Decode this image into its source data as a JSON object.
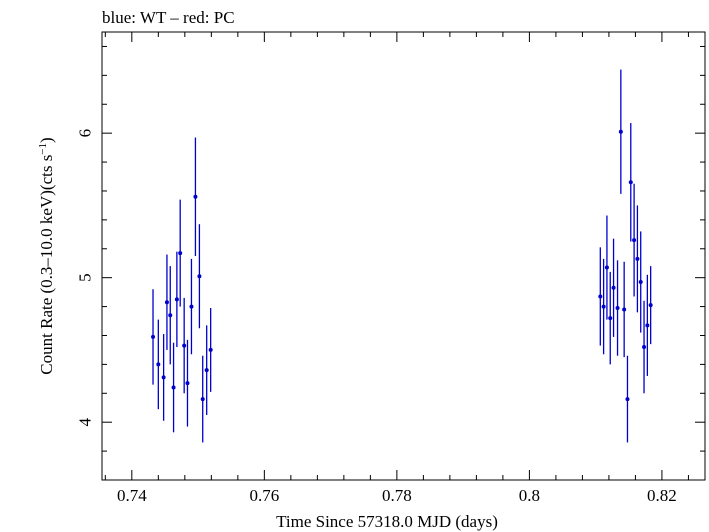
{
  "chart_data": {
    "type": "scatter",
    "title": "blue: WT – red: PC",
    "xlabel": "Time Since 57318.0 MJD (days)",
    "ylabel_main": "Count Rate (0.3–10.0 keV)(cts s",
    "ylabel_sup": "−1",
    "ylabel_close": ")",
    "xlim": [
      0.7355,
      0.8265
    ],
    "ylim": [
      3.6,
      6.7
    ],
    "xticks": [
      0.74,
      0.76,
      0.78,
      0.8,
      0.82
    ],
    "xtick_labels": [
      "0.74",
      "0.76",
      "0.78",
      "0.8",
      "0.82"
    ],
    "yticks": [
      4,
      5,
      6
    ],
    "ytick_labels": [
      "4",
      "5",
      "6"
    ],
    "series": [
      {
        "name": "WT",
        "color": "#0000cc",
        "x": [
          0.7432,
          0.744,
          0.7448,
          0.7453,
          0.7458,
          0.7463,
          0.7468,
          0.7473,
          0.7479,
          0.7484,
          0.749,
          0.7496,
          0.7502,
          0.7507,
          0.7513,
          0.7519,
          0.7524,
          0.8107,
          0.8112,
          0.8117,
          0.8122,
          0.8127,
          0.8133,
          0.8138,
          0.8143,
          0.8148,
          0.8153,
          0.8158,
          0.8163,
          0.8168,
          0.8173,
          0.8178,
          0.8183,
          0.8188
        ],
        "y": [
          4.59,
          4.4,
          4.31,
          4.83,
          4.74,
          4.24,
          4.85,
          5.17,
          4.53,
          4.27,
          4.8,
          5.56,
          5.01,
          4.16,
          4.36,
          4.5,
          null,
          4.87,
          4.8,
          5.07,
          4.72,
          4.93,
          4.79,
          6.01,
          4.78,
          4.16,
          5.66,
          5.26,
          5.13,
          4.97,
          4.52,
          4.67,
          4.81,
          null
        ],
        "yerr": [
          0.33,
          0.31,
          0.3,
          0.33,
          0.34,
          0.31,
          0.33,
          0.37,
          0.33,
          0.3,
          0.33,
          0.41,
          0.36,
          0.3,
          0.31,
          0.29,
          null,
          0.34,
          0.33,
          0.36,
          0.32,
          0.34,
          0.33,
          0.43,
          0.33,
          0.3,
          0.41,
          0.39,
          0.37,
          0.35,
          0.32,
          0.35,
          0.27,
          null
        ]
      }
    ]
  }
}
